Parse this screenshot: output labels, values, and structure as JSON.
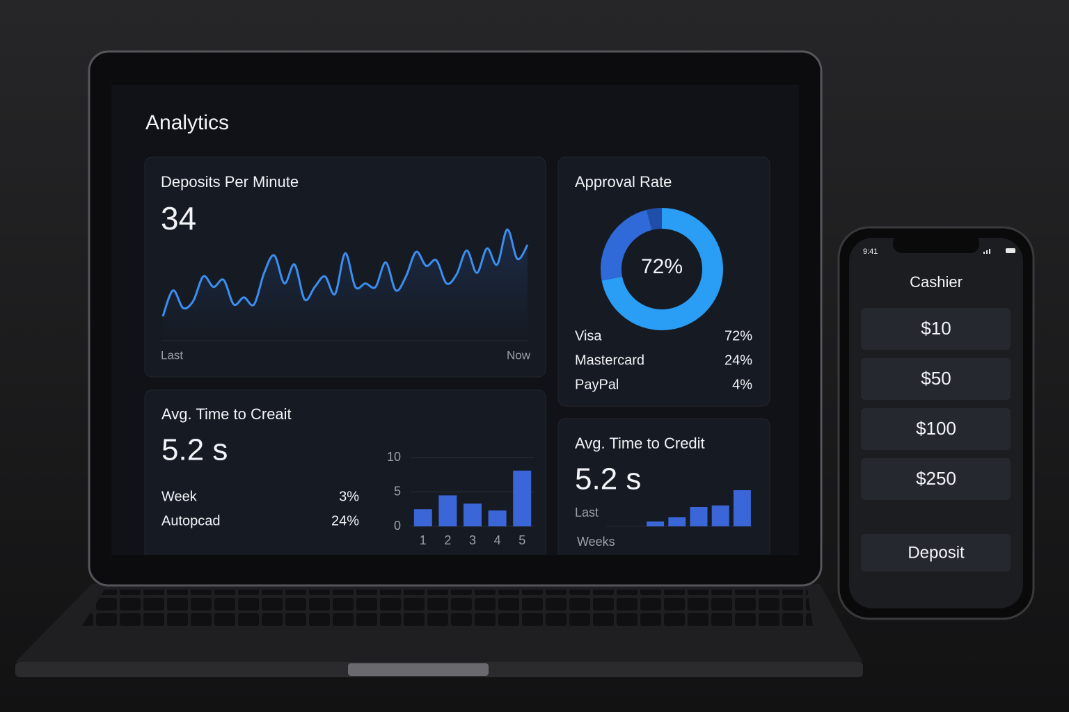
{
  "dashboard": {
    "title": "Analytics",
    "deposits": {
      "title": "Deposits Per Minute",
      "value": "34",
      "start_label": "Last",
      "end_label": "Now"
    },
    "approval": {
      "title": "Approval Rate"
    },
    "time_credit": {
      "title": "Avg. Time to Creait",
      "value": "5.2 s",
      "rows": [
        [
          "Week",
          "3%"
        ],
        [
          "Autopcad",
          "24%"
        ]
      ]
    },
    "time_credit_2": {
      "title": "Avg. Time to Credit",
      "value": "5.2 s",
      "start_label": "Last",
      "x_label": "Weeks"
    }
  },
  "phone": {
    "time": "9:41",
    "title": "Cashier",
    "amounts": [
      "$10",
      "$50",
      "$100",
      "$250"
    ],
    "button": "Deposit"
  },
  "chart_data": [
    {
      "type": "line",
      "color": "#3b8ef0",
      "values": [
        8,
        45,
        20,
        30,
        65,
        50,
        60,
        25,
        35,
        25,
        70,
        95,
        55,
        82,
        32,
        50,
        65,
        40,
        98,
        50,
        55,
        50,
        85,
        45,
        65,
        100,
        80,
        88,
        55,
        68,
        102,
        70,
        105,
        82,
        132,
        90,
        110
      ]
    },
    {
      "type": "pie",
      "donut": true,
      "categories": [
        "Visa",
        "Mastercard",
        "PayPal"
      ],
      "values": [
        72,
        24,
        4
      ],
      "value_labels": [
        "72%",
        "24%",
        "4%"
      ],
      "colors": [
        "#2a9df4",
        "#2f6ad8",
        "#1f4fa8"
      ],
      "center_label": "72%"
    },
    {
      "type": "bar",
      "categories": [
        "1",
        "2",
        "3",
        "4",
        "5"
      ],
      "values": [
        2.5,
        4.5,
        3.3,
        2.3,
        8.1
      ],
      "ylim": [
        0,
        10
      ],
      "yticks": [
        0,
        5,
        10
      ],
      "grid": true,
      "color": "#3a66d8"
    },
    {
      "type": "bar",
      "values": [
        7,
        13,
        28,
        30,
        52
      ],
      "color": "#3a66d8"
    }
  ]
}
